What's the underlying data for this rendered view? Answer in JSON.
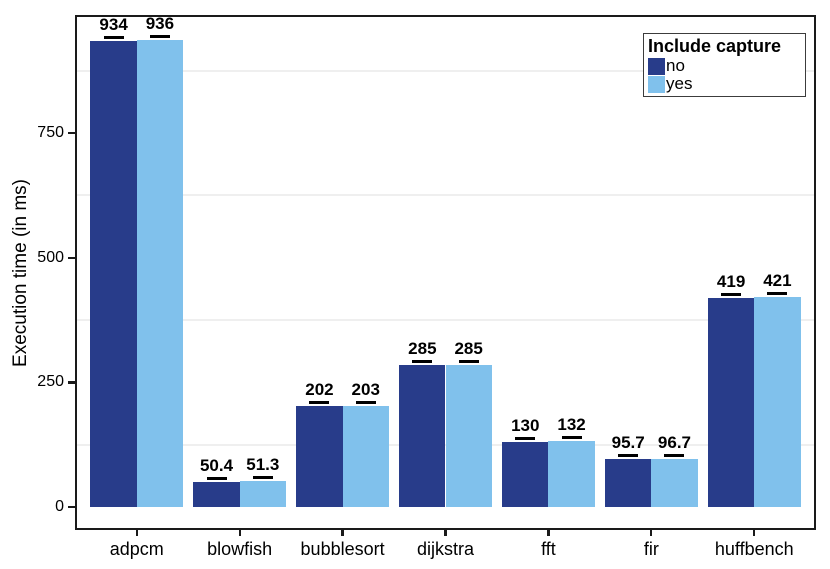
{
  "chart_data": {
    "type": "bar",
    "title": "",
    "xlabel": "",
    "ylabel": "Execution time (in ms)",
    "categories": [
      "adpcm",
      "blowfish",
      "bubblesort",
      "dijkstra",
      "fft",
      "fir",
      "huffbench"
    ],
    "series": [
      {
        "name": "no",
        "color": "#283c8a",
        "values": [
          934,
          50.4,
          202,
          285,
          130,
          95.7,
          419
        ],
        "labels": [
          "934",
          "50.4",
          "202",
          "285",
          "130",
          "95.7",
          "419"
        ]
      },
      {
        "name": "yes",
        "color": "#80c1ec",
        "values": [
          936,
          51.3,
          203,
          285,
          132,
          96.7,
          421
        ],
        "labels": [
          "936",
          "51.3",
          "203",
          "285",
          "132",
          "96.7",
          "421"
        ]
      }
    ],
    "y_ticks": [
      0,
      250,
      500,
      750
    ],
    "y_tick_labels": [
      "0",
      "250",
      "500",
      "750"
    ],
    "y_minor_gridlines": [
      125,
      375,
      625,
      875
    ],
    "ylim": [
      0,
      985
    ],
    "grid": "minor horizontal only, very faint",
    "error_bars": "small black caps at bar tops",
    "legend": {
      "title": "Include capture",
      "position": "top-right-inside",
      "entries": [
        "no",
        "yes"
      ]
    },
    "colors": {
      "bar_dark": "#283c8a",
      "bar_light": "#80c1ec",
      "panel_border": "#1a1a1a",
      "gridline": "#efefef",
      "text": "#000000"
    }
  }
}
